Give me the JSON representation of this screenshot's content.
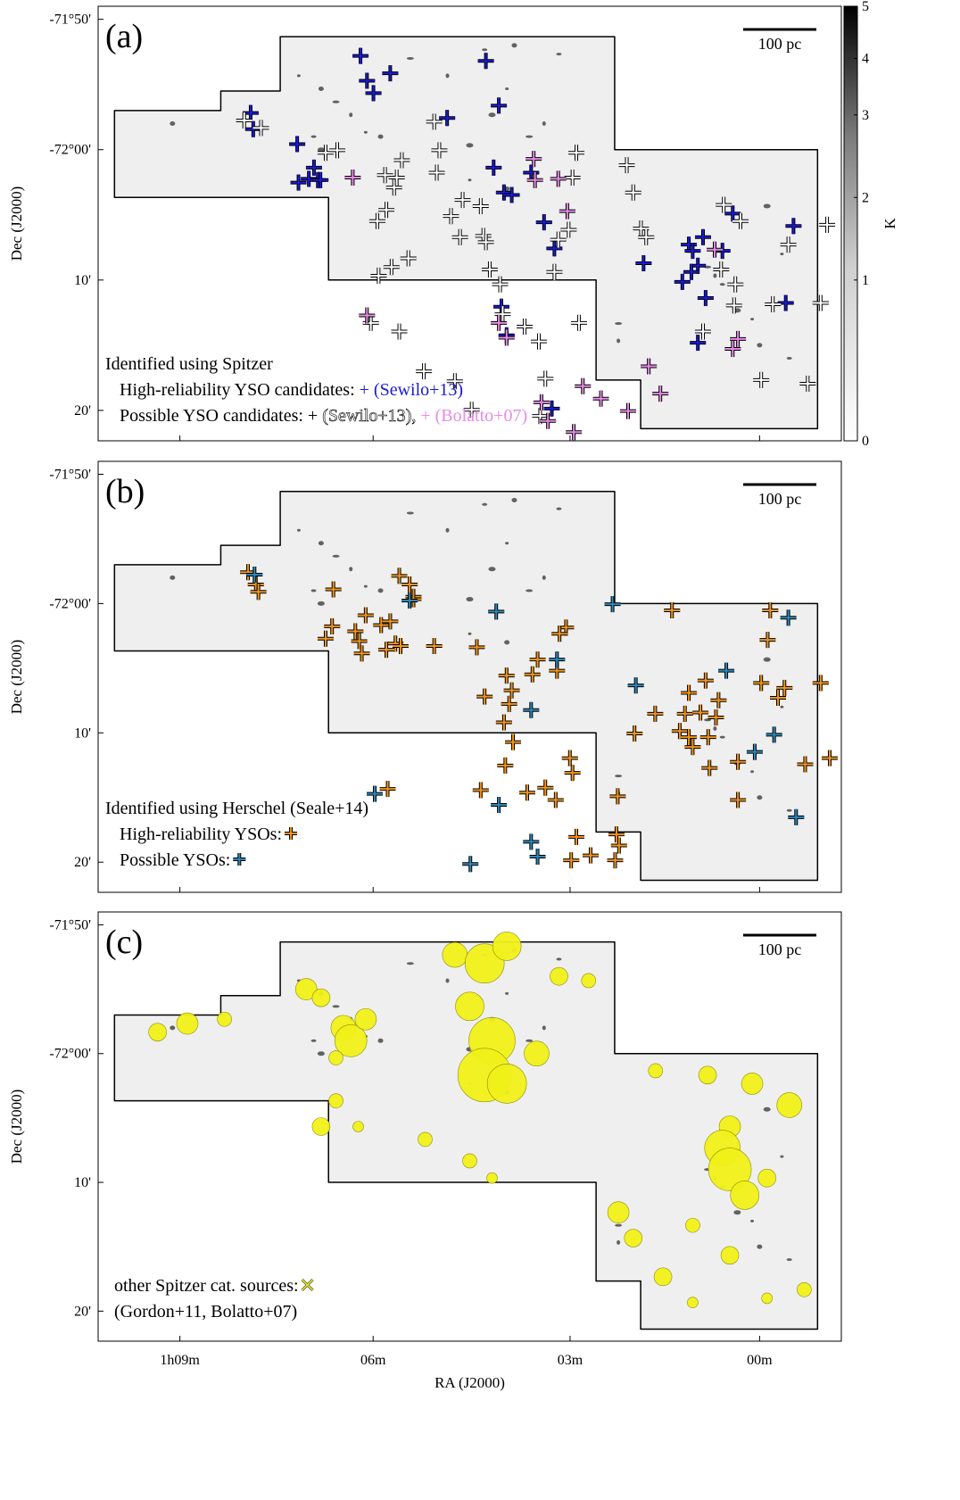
{
  "figure": {
    "colorbar": {
      "label": "K",
      "ticks": [
        "0",
        "1",
        "2",
        "3",
        "4",
        "5"
      ],
      "colormap": "gray_r"
    },
    "scale_bar_label": "100 pc"
  },
  "chart_data": [
    {
      "type": "scatter",
      "panel": "(a)",
      "xlabel": "",
      "ylabel": "Dec (J2000)",
      "yticks": [
        "-71°50'",
        "-72°00'",
        "10'",
        "20'"
      ],
      "xticks": [],
      "xlim": [
        9.9,
        56.0
      ],
      "ylim": [
        0,
        33
      ],
      "legend": {
        "title": "Identified using Spitzer",
        "lines": [
          {
            "text": "High-reliability YSO candidates: ",
            "marker_text": "+ (Sewilo+13)",
            "color": "#1a1ad6"
          },
          {
            "text": "Possible YSO candidates: + ",
            "marker_text": "(Sewilo+13), ",
            "color": "#ffffff",
            "extra": "+ (Bolatto+07)",
            "extra_color": "#e58ce6"
          }
        ]
      },
      "series": [
        {
          "name": "High-reliability YSO candidates (Sewilo+13)",
          "color": "#1a1ad6",
          "points": [
            [
              11.8,
              8.6
            ],
            [
              12.0,
              9.9
            ],
            [
              15.4,
              11.1
            ],
            [
              16.3,
              13.9
            ],
            [
              15.5,
              14.2
            ],
            [
              17.0,
              14.0
            ],
            [
              16.7,
              13.0
            ],
            [
              17.2,
              14.0
            ],
            [
              20.3,
              4.0
            ],
            [
              20.8,
              6.0
            ],
            [
              21.3,
              7.0
            ],
            [
              22.6,
              5.4
            ],
            [
              27.0,
              9.0
            ],
            [
              30.6,
              13.0
            ],
            [
              31.4,
              15.0
            ],
            [
              32.0,
              15.2
            ],
            [
              31.0,
              8.0
            ],
            [
              30.0,
              4.4
            ],
            [
              33.5,
              13.4
            ],
            [
              34.5,
              17.4
            ],
            [
              35.3,
              19.5
            ],
            [
              45.7,
              19.2
            ],
            [
              46.0,
              19.7
            ],
            [
              46.8,
              18.6
            ],
            [
              46.4,
              20.9
            ],
            [
              48.3,
              19.7
            ],
            [
              45.9,
              21.4
            ],
            [
              45.2,
              22.2
            ],
            [
              47.0,
              23.5
            ],
            [
              49.1,
              16.7
            ],
            [
              53.8,
              17.7
            ],
            [
              53.2,
              23.9
            ],
            [
              46.4,
              27.1
            ],
            [
              42.2,
              20.7
            ],
            [
              35.1,
              32.4
            ],
            [
              31.6,
              26.5
            ],
            [
              31.2,
              24.2
            ]
          ]
        },
        {
          "name": "Possible YSO candidates (Sewilo+13)",
          "color": "#ffffff",
          "points": [
            [
              11.3,
              9.2
            ],
            [
              12.6,
              9.8
            ],
            [
              17.6,
              11.8
            ],
            [
              18.5,
              11.6
            ],
            [
              22.2,
              13.6
            ],
            [
              22.9,
              14.6
            ],
            [
              23.1,
              13.8
            ],
            [
              22.3,
              16.4
            ],
            [
              23.5,
              12.4
            ],
            [
              26.0,
              9.3
            ],
            [
              26.4,
              11.6
            ],
            [
              26.2,
              13.4
            ],
            [
              21.6,
              17.3
            ],
            [
              27.3,
              16.9
            ],
            [
              28.0,
              18.6
            ],
            [
              28.2,
              15.6
            ],
            [
              29.6,
              16.1
            ],
            [
              29.8,
              18.5
            ],
            [
              30.0,
              19.0
            ],
            [
              30.3,
              21.2
            ],
            [
              31.1,
              22.4
            ],
            [
              31.3,
              24.8
            ],
            [
              33.0,
              25.8
            ],
            [
              34.1,
              27.0
            ],
            [
              34.6,
              30.0
            ],
            [
              34.2,
              33.0
            ],
            [
              37.2,
              25.5
            ],
            [
              35.3,
              21.4
            ],
            [
              35.6,
              18.8
            ],
            [
              36.4,
              18.0
            ],
            [
              36.7,
              13.8
            ],
            [
              37.0,
              11.8
            ],
            [
              40.9,
              12.8
            ],
            [
              41.4,
              15.0
            ],
            [
              42.0,
              17.9
            ],
            [
              42.4,
              18.6
            ],
            [
              48.4,
              16.0
            ],
            [
              49.7,
              17.3
            ],
            [
              48.2,
              21.2
            ],
            [
              49.3,
              22.4
            ],
            [
              49.2,
              24.1
            ],
            [
              53.4,
              19.2
            ],
            [
              52.2,
              24.0
            ],
            [
              46.8,
              26.2
            ],
            [
              51.3,
              30.1
            ],
            [
              54.9,
              30.4
            ],
            [
              56.4,
              17.6
            ],
            [
              55.9,
              23.9
            ],
            [
              28.9,
              32.5
            ],
            [
              27.6,
              30.2
            ],
            [
              25.2,
              29.4
            ],
            [
              23.3,
              26.2
            ],
            [
              21.7,
              21.7
            ],
            [
              21.1,
              25.5
            ],
            [
              22.7,
              21.0
            ],
            [
              24.0,
              20.3
            ]
          ]
        },
        {
          "name": "Possible YSO candidates (Bolatto+07)",
          "color": "#e58ce6",
          "points": [
            [
              36.8,
              34.3
            ],
            [
              34.8,
              33.4
            ],
            [
              31.6,
              26.7
            ],
            [
              31.0,
              25.5
            ],
            [
              33.8,
              14.0
            ],
            [
              33.7,
              12.3
            ],
            [
              35.6,
              13.9
            ],
            [
              36.3,
              16.5
            ],
            [
              47.7,
              19.6
            ],
            [
              49.5,
              26.8
            ],
            [
              49.1,
              27.6
            ],
            [
              42.6,
              29.0
            ],
            [
              43.5,
              31.2
            ],
            [
              41.0,
              32.6
            ],
            [
              38.9,
              31.6
            ],
            [
              37.5,
              30.6
            ],
            [
              34.3,
              31.9
            ],
            [
              20.8,
              24.9
            ],
            [
              19.7,
              13.8
            ]
          ]
        }
      ]
    },
    {
      "type": "scatter",
      "panel": "(b)",
      "xlabel": "",
      "ylabel": "Dec (J2000)",
      "yticks": [
        "-71°50'",
        "-72°00'",
        "10'",
        "20'"
      ],
      "xticks": [],
      "legend": {
        "title": "Identified using Herschel (Seale+14)",
        "lines": [
          {
            "text": "High-reliability YSOs: ",
            "marker_color": "#f0941e"
          },
          {
            "text": "Possible YSOs: ",
            "marker_color": "#2f86b8"
          }
        ]
      },
      "series": [
        {
          "name": "High-reliability YSOs",
          "color": "#f0941e",
          "points": [
            [
              11.6,
              9.0
            ],
            [
              12.2,
              10.0
            ],
            [
              12.4,
              10.6
            ],
            [
              18.2,
              10.4
            ],
            [
              19.9,
              13.8
            ],
            [
              20.2,
              14.6
            ],
            [
              20.4,
              15.6
            ],
            [
              20.7,
              12.5
            ],
            [
              21.9,
              13.3
            ],
            [
              22.6,
              13.0
            ],
            [
              23.0,
              14.8
            ],
            [
              23.4,
              15.0
            ],
            [
              24.1,
              10.0
            ],
            [
              24.4,
              11.0
            ],
            [
              24.4,
              11.2
            ],
            [
              23.3,
              9.3
            ],
            [
              22.3,
              15.3
            ],
            [
              26.0,
              15.0
            ],
            [
              29.3,
              15.1
            ],
            [
              29.9,
              19.1
            ],
            [
              31.4,
              21.2
            ],
            [
              31.8,
              19.7
            ],
            [
              32.0,
              18.6
            ],
            [
              31.6,
              17.4
            ],
            [
              33.6,
              17.3
            ],
            [
              34.0,
              16.1
            ],
            [
              36.2,
              13.5
            ],
            [
              35.7,
              14.0
            ],
            [
              35.5,
              17.0
            ],
            [
              32.1,
              22.8
            ],
            [
              31.5,
              24.7
            ],
            [
              33.2,
              26.9
            ],
            [
              34.6,
              26.5
            ],
            [
              35.4,
              27.5
            ],
            [
              36.7,
              25.3
            ],
            [
              37.0,
              30.5
            ],
            [
              36.6,
              32.4
            ],
            [
              38.1,
              32.0
            ],
            [
              40.0,
              32.4
            ],
            [
              40.3,
              31.2
            ],
            [
              40.1,
              30.3
            ],
            [
              36.5,
              24.1
            ],
            [
              29.6,
              26.7
            ],
            [
              22.4,
              26.6
            ],
            [
              17.6,
              14.4
            ],
            [
              18.1,
              13.4
            ],
            [
              40.2,
              27.2
            ],
            [
              45.0,
              21.9
            ],
            [
              45.4,
              20.5
            ],
            [
              46.6,
              20.4
            ],
            [
              45.7,
              22.4
            ],
            [
              46.0,
              23.2
            ],
            [
              47.2,
              22.4
            ],
            [
              47.8,
              20.8
            ],
            [
              48.0,
              19.4
            ],
            [
              47.3,
              24.9
            ],
            [
              49.5,
              24.4
            ],
            [
              51.3,
              18.0
            ],
            [
              52.6,
              19.2
            ],
            [
              53.1,
              18.4
            ],
            [
              55.9,
              18.0
            ],
            [
              54.7,
              24.6
            ],
            [
              56.6,
              24.1
            ],
            [
              52.0,
              12.1
            ],
            [
              41.5,
              22.1
            ],
            [
              43.1,
              20.5
            ],
            [
              44.4,
              12.1
            ],
            [
              45.7,
              18.8
            ],
            [
              47.0,
              17.8
            ],
            [
              51.8,
              14.5
            ],
            [
              49.5,
              27.5
            ]
          ]
        },
        {
          "name": "Possible YSOs",
          "color": "#2f86b8",
          "points": [
            [
              12.1,
              9.2
            ],
            [
              21.4,
              27.0
            ],
            [
              24.1,
              11.3
            ],
            [
              30.8,
              12.2
            ],
            [
              31.0,
              27.9
            ],
            [
              33.5,
              30.9
            ],
            [
              28.8,
              32.7
            ],
            [
              35.5,
              16.1
            ],
            [
              33.5,
              20.2
            ],
            [
              39.8,
              11.6
            ],
            [
              41.6,
              18.2
            ],
            [
              34.0,
              32.1
            ],
            [
              48.6,
              17.0
            ],
            [
              53.4,
              12.7
            ],
            [
              54.0,
              28.9
            ],
            [
              50.8,
              23.6
            ],
            [
              52.3,
              22.2
            ]
          ]
        }
      ]
    },
    {
      "type": "scatter",
      "panel": "(c)",
      "xlabel": "RA (J2000)",
      "ylabel": "Dec (J2000)",
      "yticks": [
        "-71°50'",
        "-72°00'",
        "10'",
        "20'"
      ],
      "xticks": [
        "1h09m",
        "06m",
        "03m",
        "00m"
      ],
      "legend": {
        "lines": [
          {
            "text": "other Spitzer cat. sources: ",
            "marker_color": "#e6e81e"
          },
          {
            "text": "(Gordon+11, Bolatto+07)"
          }
        ]
      },
      "series": [
        {
          "name": "other Spitzer cat. sources",
          "color": "#e6e81e"
        }
      ]
    }
  ]
}
